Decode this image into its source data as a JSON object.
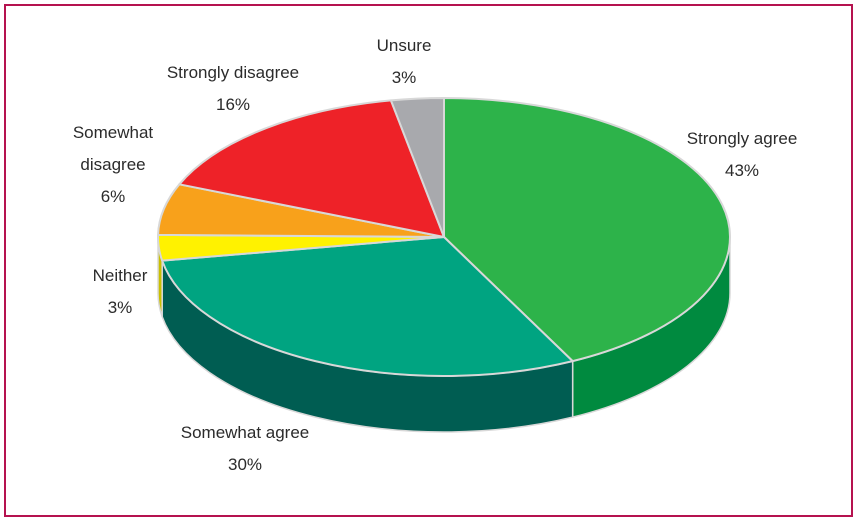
{
  "chart_data": {
    "type": "pie",
    "title": "",
    "style": "3d-tilted",
    "slices": [
      {
        "label": "Strongly agree",
        "value": 43,
        "display": "43%",
        "color": "#2db34a",
        "side_color": "#008a3f"
      },
      {
        "label": "Somewhat agree",
        "value": 30,
        "display": "30%",
        "color": "#00a481",
        "side_color": "#005d52"
      },
      {
        "label": "Neither",
        "value": 3,
        "display": "3%",
        "color": "#fff200",
        "side_color": "#c9bf00"
      },
      {
        "label": "Somewhat disagree",
        "value": 6,
        "display": "6%",
        "color": "#f8a11b",
        "side_color": "#c07b10"
      },
      {
        "label": "Strongly disagree",
        "value": 16,
        "display": "16%",
        "color": "#ee2228",
        "side_color": "#a8161b"
      },
      {
        "label": "Unsure",
        "value": 3,
        "display": "3%",
        "color": "#a8a9ad",
        "side_color": "#77787b"
      }
    ]
  },
  "labels": {
    "strongly_agree": {
      "name": "Strongly agree",
      "pct": "43%"
    },
    "somewhat_agree": {
      "name": "Somewhat agree",
      "pct": "30%"
    },
    "neither": {
      "name": "Neither",
      "pct": "3%"
    },
    "somewhat_disagree": {
      "name_line1": "Somewhat",
      "name_line2": "disagree",
      "pct": "6%"
    },
    "strongly_disagree": {
      "name": "Strongly disagree",
      "pct": "16%"
    },
    "unsure": {
      "name": "Unsure",
      "pct": "3%"
    }
  }
}
